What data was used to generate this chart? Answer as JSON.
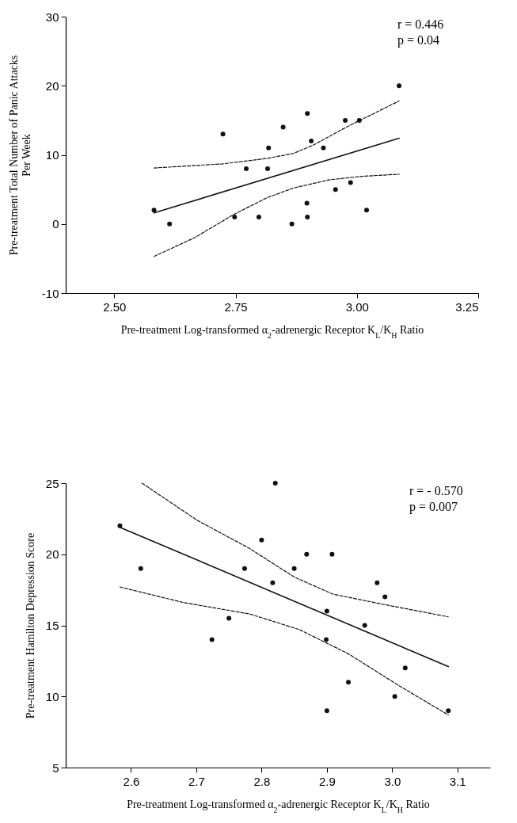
{
  "chart_data": [
    {
      "type": "scatter",
      "xlabel": "Pre-treatment Log-transformed α$_{2}$-adrenergic Receptor K$_{L}$/K$_{H}$ Ratio",
      "ylabel": "Pre-treatment Total Number of Panic Attacks\nPer Week",
      "xlim": [
        2.4,
        3.25
      ],
      "ylim": [
        -10,
        30
      ],
      "xticks": [
        {
          "value": 2.5,
          "label": "2.50"
        },
        {
          "value": 2.75,
          "label": "2.75"
        },
        {
          "value": 3,
          "label": "3.00"
        },
        {
          "value": 3.25,
          "label": "3.25"
        }
      ],
      "yticks": [
        -10,
        0,
        10,
        20,
        30
      ],
      "grid": false,
      "marker": "circle",
      "annotations": [
        "r = 0.446",
        "p = 0.04"
      ],
      "series": [
        {
          "color": "#111111",
          "x": [
            2.582,
            2.614,
            2.724,
            2.748,
            2.772,
            2.798,
            2.816,
            2.818,
            2.848,
            2.866,
            2.898,
            2.897,
            2.898,
            2.906,
            2.931,
            2.956,
            2.976,
            2.987,
            3.005,
            3.02,
            3.087
          ],
          "values": [
            2,
            0,
            13,
            1,
            8,
            1,
            8,
            11,
            14,
            0,
            16,
            3,
            1,
            12,
            11,
            5,
            15,
            6,
            15,
            2,
            20
          ]
        },
        {
          "type": "line",
          "marker": "none",
          "line_style": "solid",
          "color": "#111111",
          "x": [
            2.582,
            3.087
          ],
          "values": [
            1.6,
            12.4
          ]
        },
        {
          "type": "line",
          "marker": "none",
          "line_style": "dashed",
          "color": "#111111",
          "x": [
            2.582,
            2.724,
            2.816,
            2.869,
            2.91,
            2.978,
            3.087
          ],
          "values": [
            8.1,
            8.7,
            9.5,
            10.2,
            11.4,
            14,
            17.8
          ]
        },
        {
          "type": "line",
          "marker": "none",
          "line_style": "dashed",
          "color": "#111111",
          "x": [
            2.582,
            2.665,
            2.747,
            2.815,
            2.869,
            2.944,
            3.012,
            3.087
          ],
          "values": [
            -4.7,
            -2,
            1.4,
            3.8,
            5.2,
            6.4,
            6.9,
            7.2
          ]
        }
      ]
    },
    {
      "type": "scatter",
      "xlabel": "Pre-treatment Log-transformed α$_{2}$-adrenergic Receptor K$_{L}$/K$_{H}$ Ratio",
      "ylabel": "Pre-treatment Hamilton Depression Score",
      "xlim": [
        2.5,
        3.15
      ],
      "ylim": [
        5,
        25
      ],
      "xticks": [
        2.6,
        2.7,
        2.8,
        2.9,
        {
          "value": 3,
          "label": "3.0"
        },
        3.1
      ],
      "yticks": [
        5,
        10,
        15,
        20,
        25
      ],
      "grid": false,
      "marker": "circle",
      "annotations": [
        "r = - 0.570",
        "p = 0.007"
      ],
      "series": [
        {
          "color": "#111111",
          "x": [
            2.583,
            2.615,
            2.724,
            2.75,
            2.774,
            2.8,
            2.817,
            2.821,
            2.85,
            2.869,
            2.9,
            2.899,
            2.9,
            2.908,
            2.933,
            2.958,
            2.977,
            2.989,
            3.004,
            3.02,
            3.086
          ],
          "values": [
            22,
            19,
            14,
            15.5,
            19,
            21,
            18,
            25,
            19,
            20,
            16,
            14,
            9,
            20,
            11,
            15,
            18,
            17,
            10,
            12,
            9
          ]
        },
        {
          "type": "line",
          "marker": "none",
          "line_style": "solid",
          "color": "#111111",
          "x": [
            2.583,
            3.086
          ],
          "values": [
            21.9,
            12.1
          ]
        },
        {
          "type": "line",
          "marker": "none",
          "line_style": "dashed",
          "color": "#111111",
          "x": [
            2.617,
            2.701,
            2.782,
            2.85,
            2.909,
            2.984,
            3.086
          ],
          "values": [
            25,
            22.4,
            20.4,
            18.4,
            17.2,
            16.5,
            15.6
          ]
        },
        {
          "type": "line",
          "marker": "none",
          "line_style": "dashed",
          "color": "#111111",
          "x": [
            2.583,
            2.681,
            2.782,
            2.858,
            2.933,
            3.009,
            3.086
          ],
          "values": [
            17.7,
            16.6,
            15.8,
            14.7,
            13,
            10.8,
            8.7
          ]
        }
      ]
    }
  ]
}
